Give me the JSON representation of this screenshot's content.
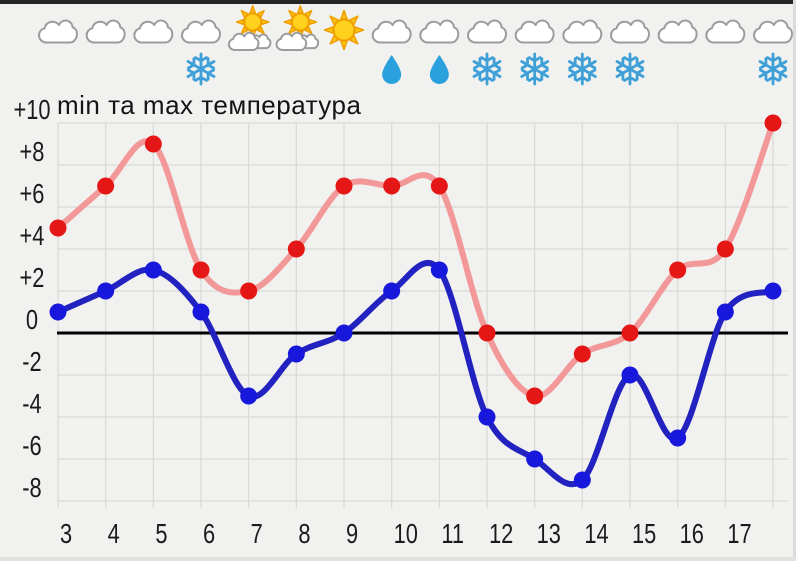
{
  "title": "min та max температура",
  "colors": {
    "background": "#f1f1ef",
    "grid": "#d9d9d7",
    "zero_line": "#000000",
    "axis_text": "#1b1b1b",
    "max_line": "#F29898",
    "max_dot": "#E51616",
    "min_line": "#2222C0",
    "min_dot": "#1818DC",
    "snowflake": "#3FA0D8",
    "raindrop": "#2AA0DC",
    "sun_fill": "#FFD21E",
    "sun_stroke": "#F0A000",
    "cloud_fill": "#FFFFFF",
    "cloud_stroke": "#9C9C9C"
  },
  "chart_data": {
    "type": "line",
    "title": "min та max температура",
    "x_labels": [
      "3",
      "4",
      "5",
      "6",
      "7",
      "8",
      "9",
      "10",
      "11",
      "12",
      "13",
      "14",
      "15",
      "16",
      "17",
      ""
    ],
    "y_tick_labels": [
      "+10",
      "+8",
      "+6",
      "+4",
      "+2",
      "0",
      "-2",
      "-4",
      "-6",
      "-8"
    ],
    "y_tick_values": [
      10,
      8,
      6,
      4,
      2,
      0,
      -2,
      -4,
      -6,
      -8
    ],
    "ylim": [
      -8,
      10
    ],
    "grid": true,
    "zero_line": true,
    "legend": "none",
    "series": [
      {
        "name": "max",
        "values": [
          5,
          7,
          9,
          3,
          2,
          4,
          7,
          7,
          7,
          0,
          -3,
          -1,
          0,
          3,
          4,
          10
        ]
      },
      {
        "name": "min",
        "values": [
          1,
          2,
          3,
          1,
          -3,
          -1,
          0,
          2,
          3,
          -4,
          -6,
          -7,
          -2,
          -5,
          1,
          2
        ]
      }
    ]
  },
  "weather_icons": [
    {
      "sky": "cloud",
      "precip": ""
    },
    {
      "sky": "cloud",
      "precip": ""
    },
    {
      "sky": "cloud",
      "precip": ""
    },
    {
      "sky": "cloud",
      "precip": "snow"
    },
    {
      "sky": "sun-cloud",
      "precip": ""
    },
    {
      "sky": "sun-cloud",
      "precip": ""
    },
    {
      "sky": "sun",
      "precip": ""
    },
    {
      "sky": "cloud",
      "precip": "rain"
    },
    {
      "sky": "cloud",
      "precip": "rain"
    },
    {
      "sky": "cloud",
      "precip": "snow"
    },
    {
      "sky": "cloud",
      "precip": "snow"
    },
    {
      "sky": "cloud",
      "precip": "snow"
    },
    {
      "sky": "cloud",
      "precip": "snow"
    },
    {
      "sky": "cloud",
      "precip": ""
    },
    {
      "sky": "cloud",
      "precip": ""
    },
    {
      "sky": "cloud",
      "precip": "snow"
    }
  ]
}
